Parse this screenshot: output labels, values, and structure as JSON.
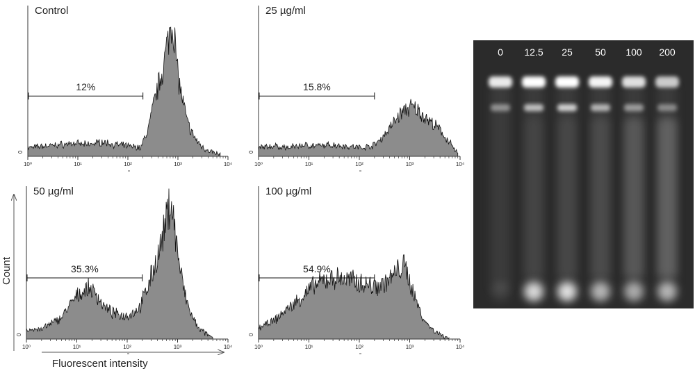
{
  "figure": {
    "y_axis_title": "Count",
    "x_axis_title": "Fluorescent intensity",
    "zero_label": "0"
  },
  "chart_data": [
    {
      "type": "area",
      "subtype": "flow-cytometry-histogram",
      "title": "Control",
      "x_scale": "log",
      "xlim": [
        1,
        10000
      ],
      "x_ticks": [
        "10⁰",
        "10¹",
        "10²",
        "10³",
        "10⁴"
      ],
      "gate": {
        "from": 1,
        "to": 200,
        "label": "12%"
      },
      "x": [
        1,
        2,
        4,
        8,
        15,
        30,
        60,
        120,
        180,
        250,
        350,
        450,
        550,
        650,
        750,
        850,
        950,
        1100,
        1300,
        1600,
        2000,
        2600,
        3500,
        5000,
        7000
      ],
      "y": [
        0.06,
        0.07,
        0.08,
        0.09,
        0.08,
        0.1,
        0.08,
        0.07,
        0.06,
        0.18,
        0.4,
        0.55,
        0.68,
        0.82,
        0.95,
        0.85,
        0.62,
        0.48,
        0.35,
        0.22,
        0.15,
        0.09,
        0.05,
        0.03,
        0.01
      ]
    },
    {
      "type": "area",
      "subtype": "flow-cytometry-histogram",
      "title": "25 µg/ml",
      "x_scale": "log",
      "xlim": [
        1,
        10000
      ],
      "x_ticks": [
        "10⁰",
        "10¹",
        "10²",
        "10³",
        "10⁴"
      ],
      "gate": {
        "from": 1,
        "to": 200,
        "label": "15.8%"
      },
      "x": [
        1,
        2,
        4,
        8,
        15,
        30,
        60,
        120,
        200,
        300,
        450,
        600,
        800,
        1000,
        1300,
        1700,
        2200,
        3000,
        4000,
        5500,
        7000,
        9000
      ],
      "y": [
        0.06,
        0.07,
        0.06,
        0.08,
        0.07,
        0.08,
        0.07,
        0.06,
        0.08,
        0.14,
        0.22,
        0.28,
        0.32,
        0.34,
        0.33,
        0.3,
        0.26,
        0.22,
        0.18,
        0.12,
        0.07,
        0.02
      ]
    },
    {
      "type": "area",
      "subtype": "flow-cytometry-histogram",
      "title": "50 µg/ml",
      "x_scale": "log",
      "xlim": [
        1,
        10000
      ],
      "x_ticks": [
        "10⁰",
        "10¹",
        "10²",
        "10³",
        "10⁴"
      ],
      "gate": {
        "from": 1,
        "to": 200,
        "label": "35.3%"
      },
      "x": [
        1,
        2,
        3,
        5,
        8,
        12,
        18,
        25,
        35,
        50,
        80,
        120,
        180,
        250,
        350,
        450,
        550,
        650,
        750,
        900,
        1100,
        1400,
        1800,
        2500,
        3500,
        5000
      ],
      "y": [
        0.06,
        0.07,
        0.1,
        0.15,
        0.25,
        0.32,
        0.35,
        0.3,
        0.22,
        0.18,
        0.16,
        0.17,
        0.22,
        0.35,
        0.5,
        0.62,
        0.75,
        0.88,
        0.95,
        0.72,
        0.5,
        0.3,
        0.18,
        0.08,
        0.04,
        0.01
      ]
    },
    {
      "type": "area",
      "subtype": "flow-cytometry-histogram",
      "title": "100 µg/ml",
      "x_scale": "log",
      "xlim": [
        1,
        10000
      ],
      "x_ticks": [
        "10⁰",
        "10¹",
        "10²",
        "10³",
        "10⁴"
      ],
      "gate": {
        "from": 1,
        "to": 200,
        "label": "54.9%"
      },
      "x": [
        1,
        2,
        3,
        5,
        8,
        12,
        20,
        30,
        50,
        80,
        120,
        200,
        300,
        450,
        600,
        750,
        900,
        1100,
        1500,
        2000,
        3000,
        4500,
        6000
      ],
      "y": [
        0.08,
        0.12,
        0.18,
        0.24,
        0.3,
        0.36,
        0.4,
        0.42,
        0.41,
        0.4,
        0.38,
        0.36,
        0.38,
        0.42,
        0.48,
        0.5,
        0.45,
        0.35,
        0.22,
        0.12,
        0.06,
        0.02,
        0.01
      ]
    }
  ],
  "gel": {
    "lane_labels": [
      "0",
      "12.5",
      "25",
      "50",
      "100",
      "200"
    ],
    "lanes": [
      {
        "well": 0.9,
        "band": 0.5,
        "smear": 0.05,
        "bottom": 0.1
      },
      {
        "well": 1.0,
        "band": 0.75,
        "smear": 0.15,
        "bottom": 0.95
      },
      {
        "well": 1.0,
        "band": 0.85,
        "smear": 0.18,
        "bottom": 1.0
      },
      {
        "well": 0.95,
        "band": 0.7,
        "smear": 0.25,
        "bottom": 0.75
      },
      {
        "well": 0.85,
        "band": 0.55,
        "smear": 0.45,
        "bottom": 0.7
      },
      {
        "well": 0.75,
        "band": 0.45,
        "smear": 0.6,
        "bottom": 0.75
      }
    ]
  }
}
